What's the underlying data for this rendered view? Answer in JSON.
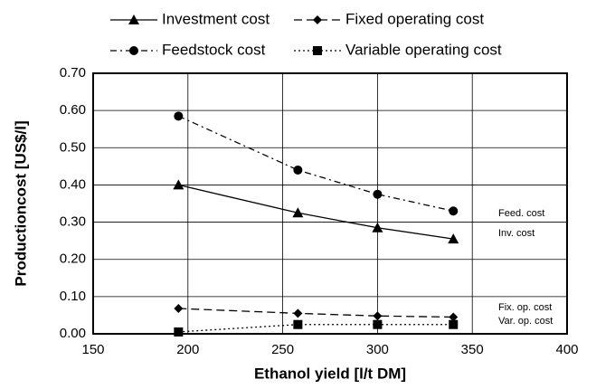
{
  "chart_data": {
    "type": "line",
    "x_label": "Ethanol yield [l/t DM]",
    "y_label": "Productioncost [US$/l]",
    "x": [
      195,
      258,
      300,
      340
    ],
    "series": [
      {
        "name": "Investment cost",
        "color": "#000000",
        "marker": "triangle",
        "dash": "solid",
        "values": [
          0.4,
          0.325,
          0.285,
          0.255
        ]
      },
      {
        "name": "Fixed operating cost",
        "color": "#000000",
        "marker": "diamond",
        "dash": "dashed",
        "values": [
          0.068,
          0.055,
          0.048,
          0.045
        ]
      },
      {
        "name": "Feedstock cost",
        "color": "#000000",
        "marker": "circle",
        "dash": "dashdot",
        "values": [
          0.585,
          0.44,
          0.375,
          0.33
        ]
      },
      {
        "name": "Variable operating cost",
        "color": "#000000",
        "marker": "square",
        "dash": "dotted",
        "values": [
          0.005,
          0.025,
          0.025,
          0.025
        ]
      }
    ],
    "annotations": [
      "Feed. cost",
      "Inv. cost",
      "Fix. op. cost",
      "Var. op. cost"
    ],
    "xlim": [
      150,
      400
    ],
    "xticks": [
      150,
      200,
      250,
      300,
      350,
      400
    ],
    "ylim": [
      0,
      0.7
    ],
    "yticks": [
      {
        "value": 0,
        "label": "0.00"
      },
      {
        "value": 0.1,
        "label": "0.10"
      },
      {
        "value": 0.2,
        "label": "0.20"
      },
      {
        "value": 0.3,
        "label": "0.30"
      },
      {
        "value": 0.4,
        "label": "0.40"
      },
      {
        "value": 0.5,
        "label": "0.50"
      },
      {
        "value": 0.6,
        "label": "0.60"
      },
      {
        "value": 0.7,
        "label": "0.70"
      }
    ],
    "grid": true,
    "legend": "top"
  }
}
